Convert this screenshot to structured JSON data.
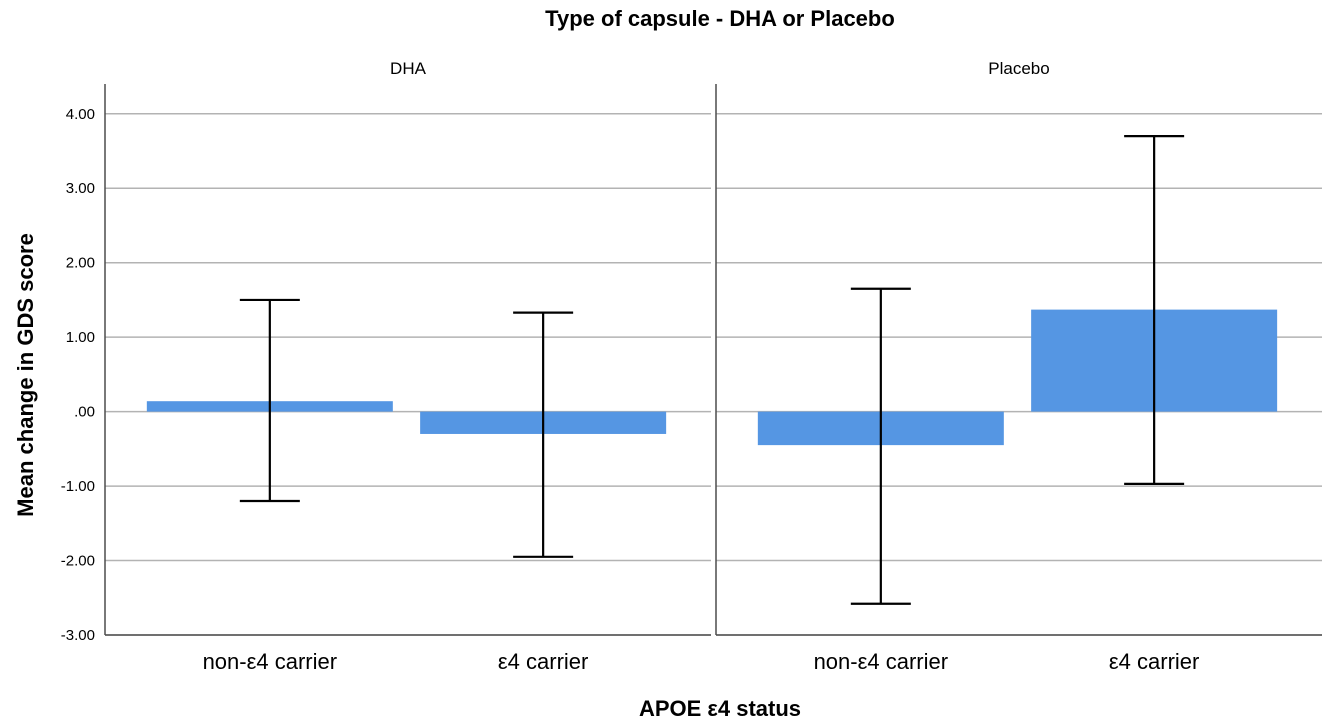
{
  "chart_data": {
    "type": "bar",
    "title": "Type of capsule - DHA or Placebo",
    "xlabel": "APOE ε4 status",
    "ylabel": "Mean change in GDS score",
    "ylim": [
      -3,
      4.4
    ],
    "yticks": [
      4,
      3,
      2,
      1,
      0,
      -1,
      -2,
      -3
    ],
    "ytick_labels": [
      "4.00",
      "3.00",
      "2.00",
      "1.00",
      ".00",
      "-1.00",
      "-2.00",
      "-3.00"
    ],
    "grid": true,
    "bar_color": "#5596e3",
    "panels": [
      {
        "label": "DHA",
        "categories": [
          "non-ε4 carrier",
          "ε4 carrier"
        ],
        "values": [
          0.14,
          -0.3
        ],
        "error_low": [
          -1.2,
          -1.95
        ],
        "error_high": [
          1.5,
          1.33
        ]
      },
      {
        "label": "Placebo",
        "categories": [
          "non-ε4 carrier",
          "ε4 carrier"
        ],
        "values": [
          -0.45,
          1.37
        ],
        "error_low": [
          -2.58,
          -0.97
        ],
        "error_high": [
          1.65,
          3.7
        ]
      }
    ]
  }
}
